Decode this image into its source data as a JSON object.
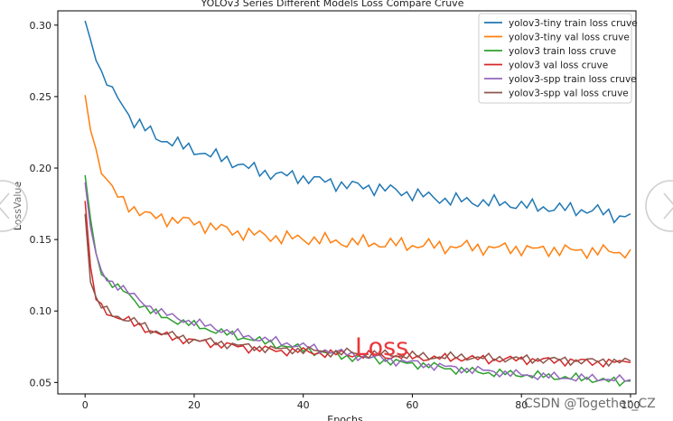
{
  "chart_data": {
    "type": "line",
    "title": "YOLOv3 Series Different Models Loss Compare Cruve",
    "xlabel": "Epochs",
    "ylabel": "LossValue",
    "xlim": [
      -5,
      101
    ],
    "ylim": [
      0.042,
      0.31
    ],
    "xticks": [
      0,
      20,
      40,
      60,
      80,
      100
    ],
    "xtick_labels": [
      "0",
      "20",
      "40",
      "60",
      "80",
      "100"
    ],
    "yticks": [
      0.05,
      0.1,
      0.15,
      0.2,
      0.25,
      0.3
    ],
    "ytick_labels": [
      "0.05",
      "0.10",
      "0.15",
      "0.20",
      "0.25",
      "0.30"
    ],
    "grid": false,
    "legend_position": "top-right",
    "annotation": "Loss",
    "series": [
      {
        "name": "yolov3-tiny train loss cruve",
        "color": "#1f77b4",
        "x": [
          0,
          1,
          2,
          3,
          4,
          5,
          6,
          7,
          8,
          9,
          10,
          12,
          14,
          16,
          18,
          20,
          22,
          24,
          26,
          28,
          30,
          33,
          36,
          39,
          42,
          45,
          48,
          51,
          54,
          57,
          60,
          63,
          66,
          70,
          74,
          78,
          82,
          86,
          90,
          94,
          98,
          100
        ],
        "values": [
          0.303,
          0.29,
          0.28,
          0.265,
          0.26,
          0.252,
          0.25,
          0.244,
          0.238,
          0.232,
          0.23,
          0.225,
          0.22,
          0.218,
          0.215,
          0.213,
          0.21,
          0.208,
          0.206,
          0.203,
          0.2,
          0.197,
          0.195,
          0.194,
          0.192,
          0.19,
          0.188,
          0.187,
          0.186,
          0.184,
          0.182,
          0.18,
          0.178,
          0.177,
          0.176,
          0.175,
          0.173,
          0.172,
          0.171,
          0.17,
          0.166,
          0.168
        ]
      },
      {
        "name": "yolov3-tiny val loss cruve",
        "color": "#ff7f0e",
        "x": [
          0,
          1,
          2,
          3,
          4,
          5,
          6,
          7,
          8,
          9,
          10,
          12,
          14,
          16,
          18,
          20,
          22,
          24,
          26,
          28,
          30,
          33,
          36,
          39,
          42,
          45,
          48,
          51,
          54,
          57,
          60,
          63,
          66,
          70,
          74,
          78,
          82,
          86,
          90,
          94,
          98,
          100
        ],
        "values": [
          0.251,
          0.23,
          0.212,
          0.2,
          0.192,
          0.185,
          0.18,
          0.176,
          0.174,
          0.172,
          0.17,
          0.166,
          0.165,
          0.164,
          0.163,
          0.162,
          0.16,
          0.158,
          0.157,
          0.155,
          0.154,
          0.153,
          0.151,
          0.151,
          0.15,
          0.149,
          0.148,
          0.148,
          0.147,
          0.147,
          0.146,
          0.146,
          0.145,
          0.145,
          0.144,
          0.144,
          0.143,
          0.143,
          0.142,
          0.142,
          0.141,
          0.143
        ]
      },
      {
        "name": "yolov3 train loss cruve",
        "color": "#2ca02c",
        "x": [
          0,
          1,
          2,
          3,
          4,
          5,
          6,
          7,
          8,
          9,
          10,
          12,
          14,
          16,
          18,
          20,
          22,
          24,
          26,
          28,
          30,
          33,
          36,
          39,
          42,
          45,
          48,
          51,
          54,
          57,
          60,
          63,
          66,
          70,
          74,
          78,
          82,
          86,
          90,
          94,
          98,
          100
        ],
        "values": [
          0.195,
          0.163,
          0.14,
          0.128,
          0.122,
          0.119,
          0.116,
          0.114,
          0.111,
          0.108,
          0.105,
          0.1,
          0.096,
          0.094,
          0.092,
          0.09,
          0.088,
          0.086,
          0.084,
          0.082,
          0.081,
          0.078,
          0.076,
          0.074,
          0.072,
          0.07,
          0.068,
          0.067,
          0.066,
          0.064,
          0.063,
          0.062,
          0.06,
          0.058,
          0.057,
          0.056,
          0.055,
          0.054,
          0.053,
          0.052,
          0.05,
          0.051
        ]
      },
      {
        "name": "yolov3 val loss cruve",
        "color": "#d62728",
        "x": [
          0,
          1,
          2,
          3,
          4,
          5,
          6,
          7,
          8,
          9,
          10,
          12,
          14,
          16,
          18,
          20,
          22,
          24,
          26,
          28,
          30,
          33,
          36,
          39,
          42,
          45,
          48,
          51,
          54,
          57,
          60,
          63,
          66,
          70,
          74,
          78,
          82,
          86,
          90,
          94,
          98,
          100
        ],
        "values": [
          0.177,
          0.128,
          0.109,
          0.103,
          0.1,
          0.097,
          0.095,
          0.094,
          0.093,
          0.091,
          0.09,
          0.086,
          0.083,
          0.082,
          0.08,
          0.079,
          0.078,
          0.077,
          0.076,
          0.075,
          0.074,
          0.073,
          0.072,
          0.072,
          0.071,
          0.07,
          0.07,
          0.069,
          0.069,
          0.068,
          0.068,
          0.067,
          0.067,
          0.067,
          0.066,
          0.066,
          0.066,
          0.065,
          0.065,
          0.064,
          0.064,
          0.064
        ]
      },
      {
        "name": "yolov3-spp train loss cruve",
        "color": "#9467bd",
        "x": [
          0,
          1,
          2,
          3,
          4,
          5,
          6,
          7,
          8,
          9,
          10,
          12,
          14,
          16,
          18,
          20,
          22,
          24,
          26,
          28,
          30,
          33,
          36,
          39,
          42,
          45,
          48,
          51,
          54,
          57,
          60,
          63,
          66,
          70,
          74,
          78,
          82,
          86,
          90,
          94,
          98,
          100
        ],
        "values": [
          0.19,
          0.16,
          0.138,
          0.127,
          0.122,
          0.12,
          0.118,
          0.116,
          0.113,
          0.11,
          0.107,
          0.103,
          0.099,
          0.096,
          0.094,
          0.092,
          0.09,
          0.088,
          0.086,
          0.084,
          0.082,
          0.08,
          0.078,
          0.076,
          0.074,
          0.072,
          0.07,
          0.068,
          0.067,
          0.065,
          0.064,
          0.062,
          0.061,
          0.059,
          0.058,
          0.056,
          0.055,
          0.054,
          0.053,
          0.053,
          0.052,
          0.052
        ]
      },
      {
        "name": "yolov3-spp val loss cruve",
        "color": "#8c564b",
        "x": [
          0,
          1,
          2,
          3,
          4,
          5,
          6,
          7,
          8,
          9,
          10,
          12,
          14,
          16,
          18,
          20,
          22,
          24,
          26,
          28,
          30,
          33,
          36,
          39,
          42,
          45,
          48,
          51,
          54,
          57,
          60,
          63,
          66,
          70,
          74,
          78,
          82,
          86,
          90,
          94,
          98,
          100
        ],
        "values": [
          0.168,
          0.122,
          0.108,
          0.103,
          0.1,
          0.098,
          0.096,
          0.095,
          0.094,
          0.093,
          0.091,
          0.087,
          0.085,
          0.083,
          0.081,
          0.08,
          0.079,
          0.078,
          0.077,
          0.076,
          0.075,
          0.074,
          0.073,
          0.073,
          0.072,
          0.071,
          0.071,
          0.07,
          0.07,
          0.069,
          0.069,
          0.068,
          0.068,
          0.068,
          0.067,
          0.067,
          0.066,
          0.066,
          0.065,
          0.065,
          0.065,
          0.065
        ]
      }
    ]
  },
  "watermark": "CSDN @Together_CZ",
  "nav": {
    "prev_icon": "chevron-left",
    "next_icon": "chevron-right"
  }
}
